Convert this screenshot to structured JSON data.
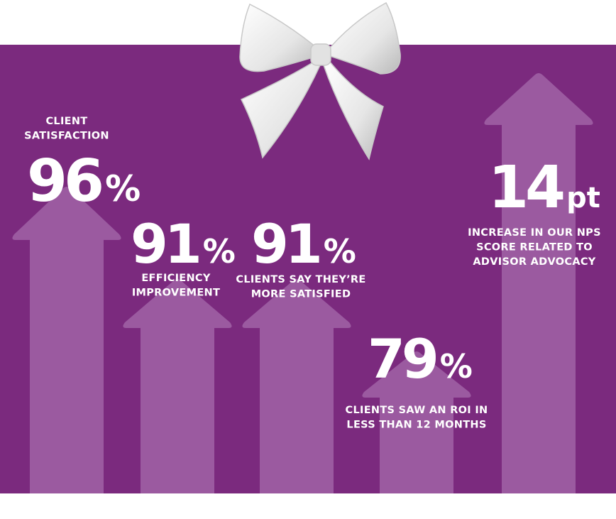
{
  "stats": [
    {
      "value": 96,
      "unit": "%",
      "label": [
        "CLIENT",
        "SATISFACTION"
      ]
    },
    {
      "value": 91,
      "unit": "%",
      "label": [
        "EFFICIENCY",
        "IMPROVEMENT"
      ]
    },
    {
      "value": 91,
      "unit": "%",
      "label": [
        "CLIENTS SAY THEY’RE",
        "MORE SATISFIED"
      ]
    },
    {
      "value": 79,
      "unit": "%",
      "label": [
        "CLIENTS SAW AN ROI IN",
        "LESS THAN 12 MONTHS"
      ]
    },
    {
      "value": 14,
      "unit": "pt",
      "label": [
        "INCREASE IN OUR NPS",
        "SCORE RELATED TO",
        "ADVISOR ADVOCACY"
      ]
    }
  ]
}
